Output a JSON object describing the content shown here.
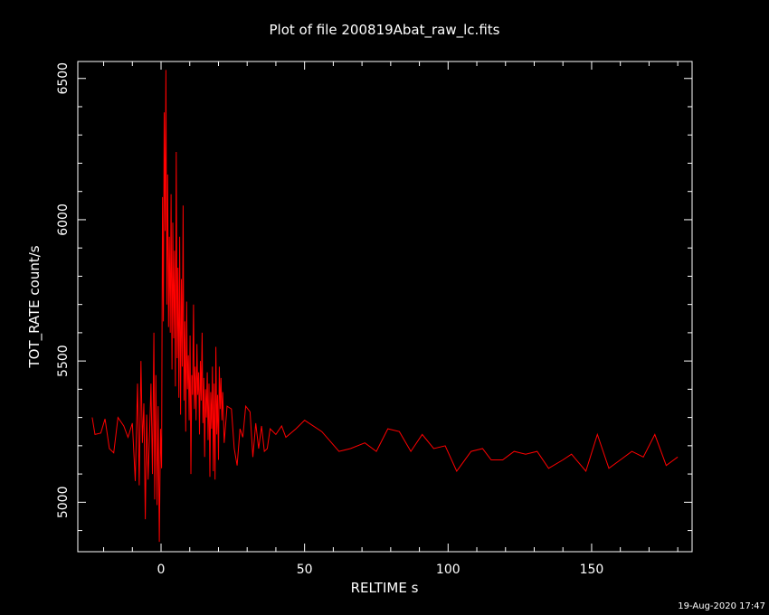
{
  "colors": {
    "background": "#000000",
    "axis": "#ffffff",
    "series": "#ff0000"
  },
  "footer": {
    "timestamp": "19-Aug-2020 17:47"
  },
  "chart_data": {
    "type": "line",
    "title": "Plot of file 200819Abat_raw_lc.fits",
    "xlabel": "RELTIME  s",
    "ylabel": "TOT_RATE  count/s",
    "xlim": [
      -29,
      185
    ],
    "ylim": [
      4825,
      6560
    ],
    "xticks": [
      {
        "value": 0,
        "label": "0"
      },
      {
        "value": 50,
        "label": "50"
      },
      {
        "value": 100,
        "label": "100"
      },
      {
        "value": 150,
        "label": "150"
      }
    ],
    "yticks": [
      {
        "value": 5000,
        "label": "5000"
      },
      {
        "value": 5500,
        "label": "5500"
      },
      {
        "value": 6000,
        "label": "6000"
      },
      {
        "value": 6500,
        "label": "6500"
      }
    ],
    "x_minor_step": 10,
    "y_minor_step": 100,
    "grid": false,
    "series": [
      {
        "color": "#ff0000",
        "points": [
          [
            -24,
            5300
          ],
          [
            -23,
            5240
          ],
          [
            -21,
            5245
          ],
          [
            -19.5,
            5295
          ],
          [
            -18,
            5190
          ],
          [
            -16.5,
            5175
          ],
          [
            -15,
            5300
          ],
          [
            -13,
            5270
          ],
          [
            -11.5,
            5230
          ],
          [
            -10,
            5280
          ],
          [
            -9,
            5075
          ],
          [
            -8.2,
            5420
          ],
          [
            -7.6,
            5060
          ],
          [
            -7,
            5500
          ],
          [
            -6.5,
            5210
          ],
          [
            -6,
            5350
          ],
          [
            -5.5,
            4940
          ],
          [
            -5,
            5310
          ],
          [
            -4.5,
            5080
          ],
          [
            -4,
            5240
          ],
          [
            -3.5,
            5420
          ],
          [
            -3,
            5100
          ],
          [
            -2.5,
            5600
          ],
          [
            -2.2,
            5010
          ],
          [
            -1.8,
            5450
          ],
          [
            -1.4,
            4990
          ],
          [
            -1,
            5340
          ],
          [
            -0.6,
            4860
          ],
          [
            -0.2,
            5260
          ],
          [
            0.2,
            5120
          ],
          [
            0.5,
            6080
          ],
          [
            0.8,
            5640
          ],
          [
            1.1,
            6380
          ],
          [
            1.4,
            5960
          ],
          [
            1.7,
            6530
          ],
          [
            2,
            5700
          ],
          [
            2.3,
            6160
          ],
          [
            2.6,
            5620
          ],
          [
            2.9,
            5940
          ],
          [
            3.2,
            5600
          ],
          [
            3.5,
            6090
          ],
          [
            3.8,
            5470
          ],
          [
            4.1,
            5990
          ],
          [
            4.4,
            5580
          ],
          [
            4.7,
            5890
          ],
          [
            5,
            5410
          ],
          [
            5.3,
            6240
          ],
          [
            5.6,
            5510
          ],
          [
            5.9,
            5830
          ],
          [
            6.2,
            5370
          ],
          [
            6.5,
            5940
          ],
          [
            6.8,
            5310
          ],
          [
            7.1,
            5790
          ],
          [
            7.4,
            5480
          ],
          [
            7.7,
            6050
          ],
          [
            8,
            5360
          ],
          [
            8.3,
            5640
          ],
          [
            8.6,
            5250
          ],
          [
            8.9,
            5710
          ],
          [
            9.2,
            5400
          ],
          [
            9.5,
            5520
          ],
          [
            9.8,
            5290
          ],
          [
            10.1,
            5590
          ],
          [
            10.4,
            5100
          ],
          [
            10.7,
            5450
          ],
          [
            11,
            5380
          ],
          [
            11.3,
            5700
          ],
          [
            11.6,
            5330
          ],
          [
            11.9,
            5480
          ],
          [
            12.2,
            5290
          ],
          [
            12.5,
            5560
          ],
          [
            12.8,
            5380
          ],
          [
            13.1,
            5460
          ],
          [
            13.4,
            5240
          ],
          [
            13.7,
            5500
          ],
          [
            14,
            5360
          ],
          [
            14.3,
            5600
          ],
          [
            14.6,
            5280
          ],
          [
            14.9,
            5440
          ],
          [
            15.2,
            5160
          ],
          [
            15.5,
            5400
          ],
          [
            15.8,
            5300
          ],
          [
            16.1,
            5460
          ],
          [
            16.4,
            5220
          ],
          [
            16.7,
            5420
          ],
          [
            17,
            5090
          ],
          [
            17.3,
            5390
          ],
          [
            17.6,
            5260
          ],
          [
            17.9,
            5480
          ],
          [
            18.2,
            5110
          ],
          [
            18.5,
            5420
          ],
          [
            18.8,
            5080
          ],
          [
            19.1,
            5550
          ],
          [
            19.4,
            5240
          ],
          [
            19.7,
            5380
          ],
          [
            20,
            5150
          ],
          [
            20.3,
            5480
          ],
          [
            20.6,
            5330
          ],
          [
            20.9,
            5440
          ],
          [
            21.2,
            5290
          ],
          [
            21.5,
            5390
          ],
          [
            22,
            5210
          ],
          [
            23,
            5340
          ],
          [
            24.5,
            5330
          ],
          [
            25.5,
            5190
          ],
          [
            26.5,
            5130
          ],
          [
            27.5,
            5260
          ],
          [
            28.5,
            5230
          ],
          [
            29.5,
            5340
          ],
          [
            31,
            5320
          ],
          [
            32,
            5160
          ],
          [
            33,
            5280
          ],
          [
            34,
            5190
          ],
          [
            35,
            5270
          ],
          [
            36,
            5180
          ],
          [
            37,
            5190
          ],
          [
            38,
            5260
          ],
          [
            40,
            5240
          ],
          [
            42,
            5270
          ],
          [
            43.5,
            5230
          ],
          [
            47,
            5260
          ],
          [
            50,
            5290
          ],
          [
            56,
            5250
          ],
          [
            62,
            5180
          ],
          [
            66,
            5190
          ],
          [
            71,
            5210
          ],
          [
            75,
            5180
          ],
          [
            79,
            5260
          ],
          [
            83,
            5250
          ],
          [
            87,
            5180
          ],
          [
            91,
            5240
          ],
          [
            95,
            5190
          ],
          [
            99,
            5200
          ],
          [
            103,
            5110
          ],
          [
            108,
            5180
          ],
          [
            112,
            5190
          ],
          [
            115,
            5150
          ],
          [
            119,
            5150
          ],
          [
            123,
            5180
          ],
          [
            127,
            5170
          ],
          [
            131,
            5180
          ],
          [
            135,
            5120
          ],
          [
            140,
            5150
          ],
          [
            143,
            5170
          ],
          [
            148,
            5110
          ],
          [
            152,
            5240
          ],
          [
            156,
            5120
          ],
          [
            160,
            5150
          ],
          [
            164,
            5180
          ],
          [
            168,
            5160
          ],
          [
            172,
            5240
          ],
          [
            176,
            5130
          ],
          [
            180,
            5160
          ]
        ]
      }
    ]
  }
}
